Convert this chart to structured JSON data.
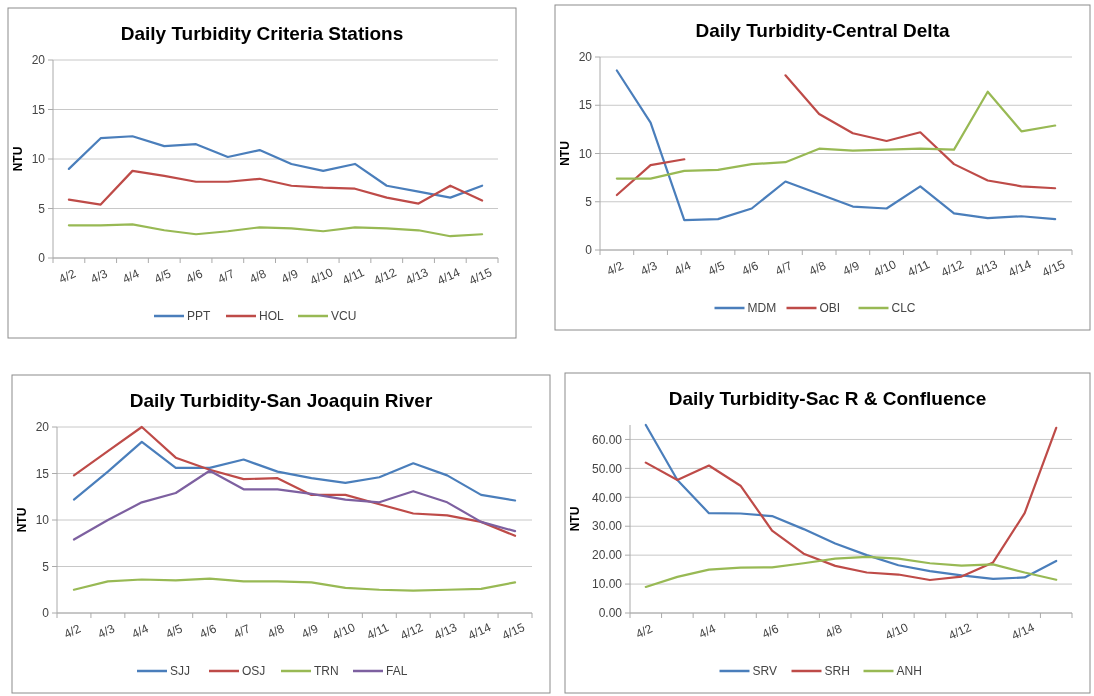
{
  "chart_data": [
    {
      "type": "line",
      "title": "Daily Turbidity Criteria Stations",
      "ylabel": "NTU",
      "categories": [
        "4/2",
        "4/3",
        "4/4",
        "4/5",
        "4/6",
        "4/7",
        "4/8",
        "4/9",
        "4/10",
        "4/11",
        "4/12",
        "4/13",
        "4/14",
        "4/15"
      ],
      "ylim": [
        0,
        20
      ],
      "yticks": [
        0,
        5,
        10,
        15,
        20
      ],
      "grid": "y",
      "legend": "bottom",
      "series": [
        {
          "name": "PPT",
          "color": "#4a7ebb",
          "values": [
            9.0,
            12.1,
            12.3,
            11.3,
            11.5,
            10.2,
            10.9,
            9.5,
            8.8,
            9.5,
            7.3,
            6.7,
            6.1,
            7.3
          ]
        },
        {
          "name": "HOL",
          "color": "#be4b48",
          "values": [
            5.9,
            5.4,
            8.8,
            8.3,
            7.7,
            7.7,
            8.0,
            7.3,
            7.1,
            7.0,
            6.1,
            5.5,
            7.3,
            5.8
          ]
        },
        {
          "name": "VCU",
          "color": "#98b954",
          "values": [
            3.3,
            3.3,
            3.4,
            2.8,
            2.4,
            2.7,
            3.1,
            3.0,
            2.7,
            3.1,
            3.0,
            2.8,
            2.2,
            2.4
          ]
        }
      ]
    },
    {
      "type": "line",
      "title": "Daily Turbidity-Central Delta",
      "ylabel": "NTU",
      "categories": [
        "4/2",
        "4/3",
        "4/4",
        "4/5",
        "4/6",
        "4/7",
        "4/8",
        "4/9",
        "4/10",
        "4/11",
        "4/12",
        "4/13",
        "4/14",
        "4/15"
      ],
      "ylim": [
        0,
        20
      ],
      "yticks": [
        0,
        5,
        10,
        15,
        20
      ],
      "grid": "y",
      "legend": "bottom",
      "series": [
        {
          "name": "MDM",
          "color": "#4a7ebb",
          "values": [
            18.6,
            13.2,
            3.1,
            3.2,
            4.3,
            7.1,
            5.8,
            4.5,
            4.3,
            6.6,
            3.8,
            3.3,
            3.5,
            3.2
          ]
        },
        {
          "name": "OBI",
          "color": "#be4b48",
          "values": [
            5.7,
            8.8,
            9.4,
            null,
            null,
            18.1,
            14.1,
            12.1,
            11.3,
            12.2,
            8.9,
            7.2,
            6.6,
            6.4
          ]
        },
        {
          "name": "CLC",
          "color": "#98b954",
          "values": [
            7.4,
            7.4,
            8.2,
            8.3,
            8.9,
            9.1,
            10.5,
            10.3,
            10.4,
            10.5,
            10.4,
            16.4,
            12.3,
            12.9
          ]
        }
      ]
    },
    {
      "type": "line",
      "title": "Daily Turbidity-San Joaquin River",
      "ylabel": "NTU",
      "categories": [
        "4/2",
        "4/3",
        "4/4",
        "4/5",
        "4/6",
        "4/7",
        "4/8",
        "4/9",
        "4/10",
        "4/11",
        "4/12",
        "4/13",
        "4/14",
        "4/15"
      ],
      "ylim": [
        0,
        20
      ],
      "yticks": [
        0,
        5,
        10,
        15,
        20
      ],
      "grid": "y",
      "legend": "bottom",
      "series": [
        {
          "name": "SJJ",
          "color": "#4a7ebb",
          "values": [
            12.2,
            15.2,
            18.4,
            15.6,
            15.6,
            16.5,
            15.2,
            14.5,
            14.0,
            14.6,
            16.1,
            14.8,
            12.7,
            12.1
          ]
        },
        {
          "name": "OSJ",
          "color": "#be4b48",
          "values": [
            14.8,
            17.4,
            20.0,
            16.7,
            15.4,
            14.4,
            14.5,
            12.7,
            12.7,
            11.7,
            10.7,
            10.5,
            9.8,
            8.3
          ]
        },
        {
          "name": "TRN",
          "color": "#98b954",
          "values": [
            2.5,
            3.4,
            3.6,
            3.5,
            3.7,
            3.4,
            3.4,
            3.3,
            2.7,
            2.5,
            2.4,
            2.5,
            2.6,
            3.3
          ]
        },
        {
          "name": "FAL",
          "color": "#7d60a0",
          "values": [
            7.9,
            10.0,
            11.9,
            12.9,
            15.3,
            13.3,
            13.3,
            12.8,
            12.2,
            11.9,
            13.1,
            11.9,
            9.8,
            8.8
          ]
        }
      ]
    },
    {
      "type": "line",
      "title": "Daily Turbidity-Sac R & Confluence",
      "ylabel": "NTU",
      "categories": [
        "4/2",
        null,
        "4/4",
        null,
        "4/6",
        null,
        "4/8",
        null,
        "4/10",
        null,
        "4/12",
        null,
        "4/14",
        null
      ],
      "ylim": [
        0,
        65
      ],
      "yticks": [
        {
          "value": 0,
          "label": "0.00"
        },
        {
          "value": 10,
          "label": "10.00"
        },
        {
          "value": 20,
          "label": "20.00"
        },
        {
          "value": 30,
          "label": "30.00"
        },
        {
          "value": 40,
          "label": "40.00"
        },
        {
          "value": 50,
          "label": "50.00"
        },
        {
          "value": 60,
          "label": "60.00"
        }
      ],
      "grid": "y",
      "legend": "bottom",
      "series": [
        {
          "name": "SRV",
          "color": "#4a7ebb",
          "values": [
            65,
            46,
            34.5,
            34.4,
            33.5,
            29,
            24,
            20,
            16.5,
            14.5,
            13,
            11.8,
            12.3,
            18
          ]
        },
        {
          "name": "SRH",
          "color": "#be4b48",
          "values": [
            52,
            46,
            51,
            44,
            28.5,
            20.5,
            16.3,
            14,
            13.3,
            11.4,
            12.6,
            17.5,
            34.5,
            64
          ]
        },
        {
          "name": "ANH",
          "color": "#98b954",
          "values": [
            9,
            12.5,
            15,
            15.7,
            15.8,
            17.2,
            18.8,
            19.4,
            18.8,
            17.2,
            16.4,
            16.8,
            14,
            11.5
          ]
        }
      ]
    }
  ]
}
